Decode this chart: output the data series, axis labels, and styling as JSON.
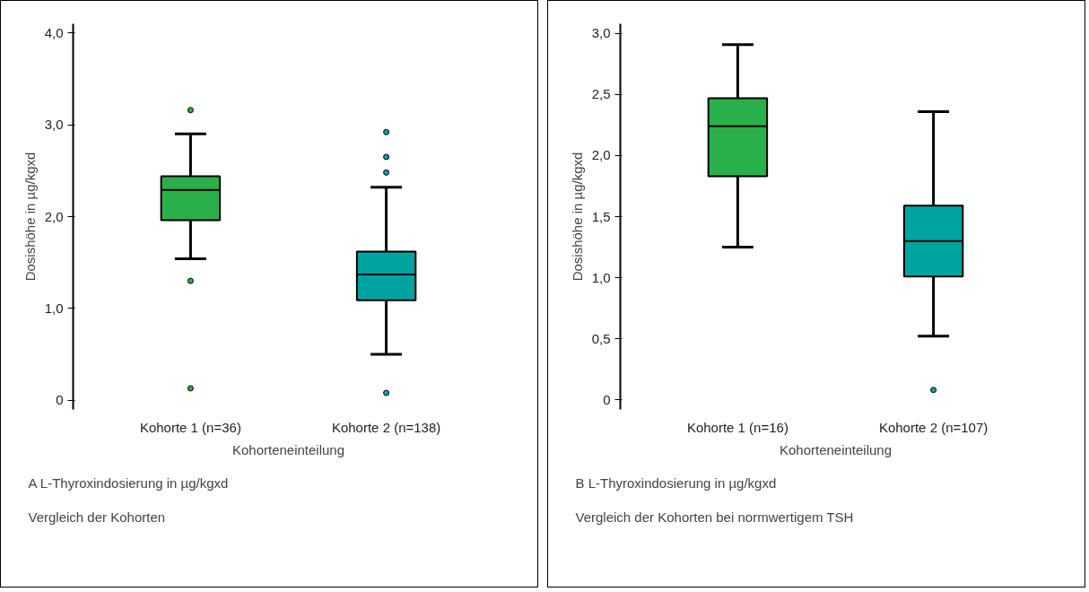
{
  "chart_data": [
    {
      "type": "box",
      "categories": [
        "Kohorte 1 (n=36)",
        "Kohorte 2 (n=138)"
      ],
      "colors": [
        "#2ab04a",
        "#00a3a0"
      ],
      "boxes": [
        {
          "low": 1.54,
          "q1": 1.96,
          "median": 2.29,
          "q3": 2.44,
          "high": 2.9,
          "outliers": [
            3.16,
            1.3,
            0.13
          ]
        },
        {
          "low": 0.5,
          "q1": 1.09,
          "median": 1.37,
          "q3": 1.62,
          "high": 2.32,
          "outliers": [
            2.92,
            2.65,
            2.48,
            0.08
          ]
        }
      ],
      "xlabel": "Kohorteneinteilung",
      "ylabel": "Dosishöhe in µg/kgxd",
      "ylim": [
        -0.1,
        4.1
      ],
      "yticks": [
        0,
        {
          "value": 1,
          "label": "1,0"
        },
        {
          "value": 2,
          "label": "2,0"
        },
        {
          "value": 3,
          "label": "3,0"
        },
        {
          "value": 4,
          "label": "4,0"
        }
      ],
      "grid": false,
      "annotations": [
        "A",
        "L-Thyroxindosierung in µg/kgxd",
        "Vergleich der Kohorten"
      ]
    },
    {
      "type": "box",
      "categories": [
        "Kohorte 1 (n=16)",
        "Kohorte 2 (n=107)"
      ],
      "colors": [
        "#2ab04a",
        "#00a3a0"
      ],
      "boxes": [
        {
          "low": 1.25,
          "q1": 1.83,
          "median": 2.24,
          "q3": 2.47,
          "high": 2.91
        },
        {
          "low": 0.52,
          "q1": 1.01,
          "median": 1.3,
          "q3": 1.59,
          "high": 2.36,
          "outliers": [
            0.08
          ]
        }
      ],
      "xlabel": "Kohorteneinteilung",
      "ylabel": "Dosishöhe in µg/kgxd",
      "ylim": [
        -0.08,
        3.08
      ],
      "yticks": [
        0,
        {
          "value": 0.5,
          "label": "0,5"
        },
        {
          "value": 1,
          "label": "1,0"
        },
        {
          "value": 1.5,
          "label": "1,5"
        },
        {
          "value": 2,
          "label": "2,0"
        },
        {
          "value": 2.5,
          "label": "2,5"
        },
        {
          "value": 3,
          "label": "3,0"
        }
      ],
      "grid": false,
      "annotations": [
        "B",
        "L-Thyroxindosierung in µg/kgxd",
        "Vergleich der Kohorten bei normwertigem TSH"
      ]
    }
  ]
}
